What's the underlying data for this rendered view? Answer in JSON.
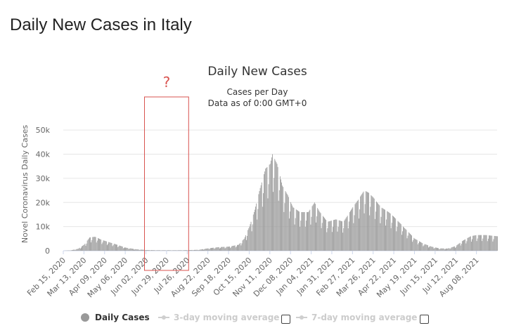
{
  "page_title": "Daily New Cases in Italy",
  "chart_data": {
    "type": "bar",
    "title": "Daily New Cases",
    "subtitle_lines": [
      "Cases per Day",
      "Data as of 0:00 GMT+0"
    ],
    "ylabel": "Novel Coronavirus Daily Cases",
    "xlabel": "",
    "ylim": [
      0,
      55000
    ],
    "yticks": [
      0,
      10000,
      20000,
      30000,
      40000,
      50000
    ],
    "ytick_labels": [
      "0",
      "10k",
      "20k",
      "30k",
      "40k",
      "50k"
    ],
    "x_start": "2020-02-15",
    "x_end": "2021-09-04",
    "x_tick_labels": [
      "Feb 15, 2020",
      "Mar 13, 2020",
      "Apr 09, 2020",
      "May 06, 2020",
      "Jun 02, 2020",
      "Jun 29, 2020",
      "Jul 26, 2020",
      "Aug 22, 2020",
      "Sep 18, 2020",
      "Oct 15, 2020",
      "Nov 11, 2020",
      "Dec 08, 2020",
      "Jan 04, 2021",
      "Jan 31, 2021",
      "Feb 27, 2021",
      "Mar 26, 2021",
      "Apr 22, 2021",
      "May 19, 2021",
      "Jun 15, 2021",
      "Jul 12, 2021",
      "Aug 08, 2021"
    ],
    "grid": true,
    "series": [
      {
        "name": "Daily Cases",
        "color": "#999999",
        "approx_points": [
          [
            "2020-02-15",
            0
          ],
          [
            "2020-02-25",
            200
          ],
          [
            "2020-03-05",
            800
          ],
          [
            "2020-03-13",
            2500
          ],
          [
            "2020-03-20",
            5500
          ],
          [
            "2020-03-27",
            5800
          ],
          [
            "2020-04-05",
            4500
          ],
          [
            "2020-04-15",
            3500
          ],
          [
            "2020-04-25",
            2500
          ],
          [
            "2020-05-06",
            1300
          ],
          [
            "2020-05-20",
            600
          ],
          [
            "2020-06-02",
            300
          ],
          [
            "2020-06-20",
            200
          ],
          [
            "2020-07-10",
            200
          ],
          [
            "2020-07-26",
            250
          ],
          [
            "2020-08-10",
            400
          ],
          [
            "2020-08-22",
            1000
          ],
          [
            "2020-09-05",
            1500
          ],
          [
            "2020-09-18",
            1700
          ],
          [
            "2020-10-01",
            2500
          ],
          [
            "2020-10-08",
            5000
          ],
          [
            "2020-10-15",
            10000
          ],
          [
            "2020-10-22",
            17000
          ],
          [
            "2020-10-29",
            26000
          ],
          [
            "2020-11-05",
            34000
          ],
          [
            "2020-11-11",
            36000
          ],
          [
            "2020-11-14",
            40000
          ],
          [
            "2020-11-20",
            36000
          ],
          [
            "2020-11-27",
            27000
          ],
          [
            "2020-12-04",
            23000
          ],
          [
            "2020-12-11",
            18000
          ],
          [
            "2020-12-20",
            16000
          ],
          [
            "2020-12-31",
            16000
          ],
          [
            "2021-01-08",
            20000
          ],
          [
            "2021-01-15",
            16000
          ],
          [
            "2021-01-25",
            12000
          ],
          [
            "2021-02-05",
            13000
          ],
          [
            "2021-02-15",
            12000
          ],
          [
            "2021-02-27",
            18000
          ],
          [
            "2021-03-08",
            22000
          ],
          [
            "2021-03-14",
            25000
          ],
          [
            "2021-03-20",
            24000
          ],
          [
            "2021-03-26",
            22000
          ],
          [
            "2021-04-05",
            18000
          ],
          [
            "2021-04-15",
            16000
          ],
          [
            "2021-04-22",
            14000
          ],
          [
            "2021-05-01",
            11000
          ],
          [
            "2021-05-10",
            8000
          ],
          [
            "2021-05-19",
            5000
          ],
          [
            "2021-05-30",
            3000
          ],
          [
            "2021-06-10",
            1700
          ],
          [
            "2021-06-20",
            1000
          ],
          [
            "2021-07-01",
            900
          ],
          [
            "2021-07-12",
            2000
          ],
          [
            "2021-07-20",
            4000
          ],
          [
            "2021-07-31",
            6000
          ],
          [
            "2021-08-08",
            6500
          ],
          [
            "2021-08-20",
            6500
          ],
          [
            "2021-09-04",
            6000
          ]
        ]
      }
    ],
    "legend": {
      "placement": "bottom",
      "items": [
        {
          "label": "Daily Cases",
          "active": true
        },
        {
          "label": "3-day moving average",
          "active": false
        },
        {
          "label": "7-day moving average",
          "active": false
        }
      ]
    },
    "annotation": {
      "text": "?",
      "color": "#d9534f",
      "range_start": "2020-06-02",
      "range_end": "2020-07-26"
    }
  }
}
